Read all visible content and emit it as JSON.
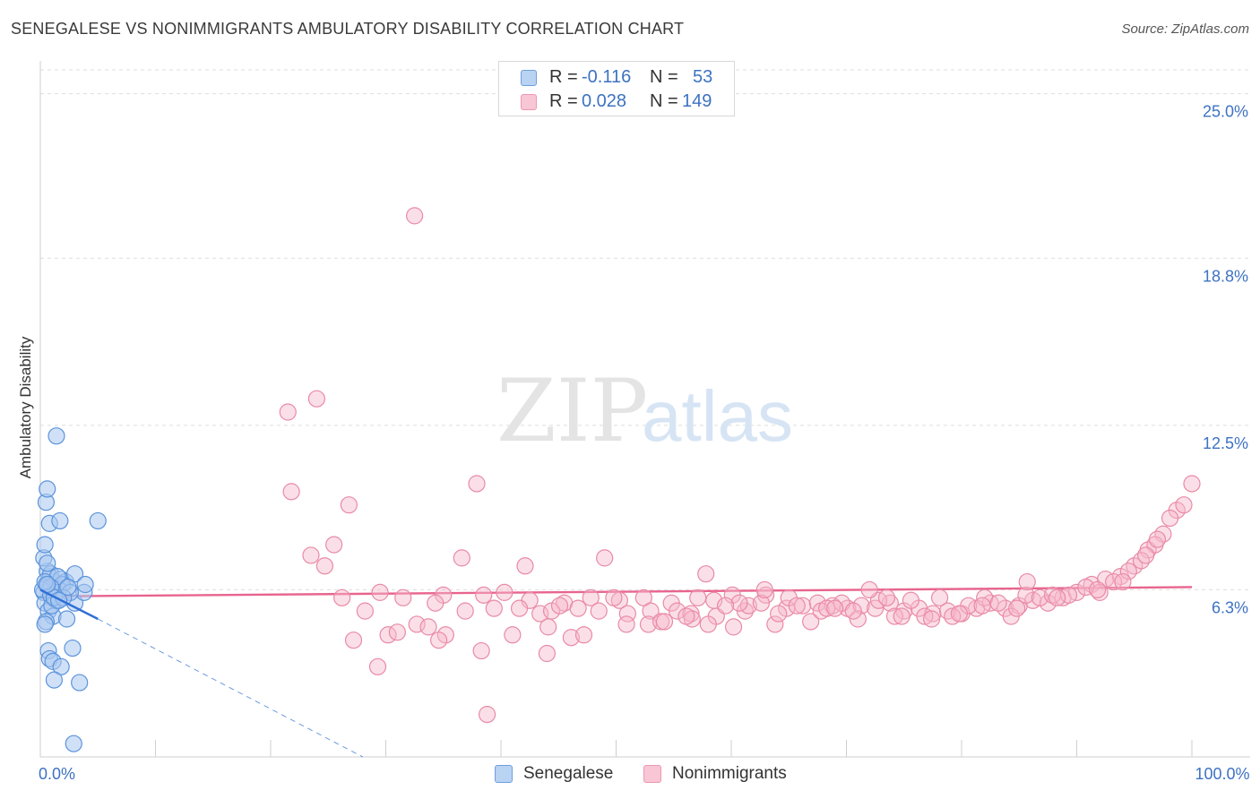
{
  "header": {
    "title": "SENEGALESE VS NONIMMIGRANTS AMBULATORY DISABILITY CORRELATION CHART",
    "source": "Source: ZipAtlas.com"
  },
  "watermark": {
    "zip": "ZIP",
    "atlas": "atlas"
  },
  "legend_top": {
    "rows": [
      {
        "r_label": "R =",
        "r_value": "-0.116",
        "n_label": "N =",
        "n_value": "53"
      },
      {
        "r_label": "R =",
        "r_value": "0.028",
        "n_label": "N =",
        "n_value": "149"
      }
    ]
  },
  "legend_bottom": {
    "items": [
      "Senegalese",
      "Nonimmigrants"
    ]
  },
  "colors": {
    "senegalese_fill": "#a9c8f0",
    "senegalese_stroke": "#5b93db",
    "senegalese_line": "#2f6fd6",
    "nonimm_fill": "#f7b9cb",
    "nonimm_stroke": "#e98aa6",
    "nonimm_line": "#e8648e",
    "axis_label": "#3d72c2",
    "grid": "#dddddd"
  },
  "chart_data": {
    "type": "scatter",
    "title": "SENEGALESE VS NONIMMIGRANTS AMBULATORY DISABILITY CORRELATION CHART",
    "xlabel": "",
    "ylabel": "Ambulatory Disability",
    "xlim": [
      0,
      100
    ],
    "ylim": [
      0,
      25.9
    ],
    "x_tick_labels": [
      "0.0%",
      "100.0%"
    ],
    "y_ticks": [
      6.3,
      12.5,
      18.8,
      25.0
    ],
    "y_tick_labels": [
      "6.3%",
      "12.5%",
      "18.8%",
      "25.0%"
    ],
    "grid": "horizontal dashed",
    "legend_position": "top-center",
    "series": [
      {
        "name": "Senegalese",
        "R": -0.116,
        "N": 53,
        "trend": {
          "x": [
            0,
            5
          ],
          "y": [
            6.3,
            5.2
          ]
        },
        "trend_extension": {
          "x": [
            5,
            28
          ],
          "y": [
            5.2,
            0
          ]
        },
        "points": [
          [
            0.3,
            6.2,
            9
          ],
          [
            0.5,
            6.5,
            9
          ],
          [
            0.8,
            6.8,
            9
          ],
          [
            1.0,
            6.0,
            9
          ],
          [
            0.4,
            5.8,
            9
          ],
          [
            1.2,
            6.6,
            9
          ],
          [
            1.5,
            6.4,
            9
          ],
          [
            0.6,
            7.0,
            9
          ],
          [
            0.9,
            6.9,
            9
          ],
          [
            1.3,
            6.1,
            9
          ],
          [
            1.8,
            6.7,
            9
          ],
          [
            0.2,
            6.3,
            9
          ],
          [
            0.7,
            5.5,
            9
          ],
          [
            1.1,
            5.3,
            9
          ],
          [
            1.4,
            5.9,
            9
          ],
          [
            0.5,
            5.1,
            9
          ],
          [
            2.2,
            6.6,
            9
          ],
          [
            1.6,
            6.3,
            9
          ],
          [
            1.9,
            6.5,
            9
          ],
          [
            0.3,
            7.5,
            9
          ],
          [
            0.6,
            7.3,
            9
          ],
          [
            0.4,
            8.0,
            9
          ],
          [
            0.8,
            8.8,
            9
          ],
          [
            0.5,
            9.6,
            9
          ],
          [
            0.6,
            10.1,
            9
          ],
          [
            1.4,
            12.1,
            9
          ],
          [
            1.7,
            8.9,
            9
          ],
          [
            5.0,
            8.9,
            9
          ],
          [
            2.3,
            5.2,
            9
          ],
          [
            3.0,
            6.9,
            9
          ],
          [
            3.0,
            5.8,
            9
          ],
          [
            3.8,
            6.2,
            9
          ],
          [
            3.9,
            6.5,
            9
          ],
          [
            0.9,
            6.1,
            9
          ],
          [
            2.6,
            6.2,
            9
          ],
          [
            0.7,
            4.0,
            9
          ],
          [
            0.8,
            3.7,
            9
          ],
          [
            1.1,
            3.6,
            9
          ],
          [
            1.8,
            3.4,
            9
          ],
          [
            2.8,
            4.1,
            9
          ],
          [
            1.2,
            2.9,
            9
          ],
          [
            3.4,
            2.8,
            9
          ],
          [
            2.9,
            0.5,
            9
          ],
          [
            0.4,
            5.0,
            9
          ],
          [
            1.0,
            5.7,
            9
          ],
          [
            1.5,
            6.8,
            9
          ],
          [
            0.9,
            6.4,
            9
          ],
          [
            0.4,
            6.6,
            9
          ],
          [
            1.2,
            6.0,
            9
          ],
          [
            2.0,
            6.0,
            9
          ],
          [
            0.6,
            6.5,
            9
          ],
          [
            1.6,
            5.9,
            9
          ],
          [
            2.4,
            6.4,
            9
          ]
        ]
      },
      {
        "name": "Nonimmigrants",
        "R": 0.028,
        "N": 149,
        "trend": {
          "x": [
            0,
            100
          ],
          "y": [
            6.05,
            6.4
          ]
        },
        "points": [
          [
            32.5,
            20.4,
            9
          ],
          [
            21.5,
            13.0,
            9
          ],
          [
            24.0,
            13.5,
            9
          ],
          [
            21.8,
            10.0,
            9
          ],
          [
            26.8,
            9.5,
            9
          ],
          [
            37.9,
            10.3,
            9
          ],
          [
            25.5,
            8.0,
            9
          ],
          [
            23.5,
            7.6,
            9
          ],
          [
            24.7,
            7.2,
            9
          ],
          [
            36.6,
            7.5,
            9
          ],
          [
            42.1,
            7.2,
            9
          ],
          [
            49.0,
            7.5,
            9
          ],
          [
            26.2,
            6.0,
            9
          ],
          [
            29.5,
            6.2,
            9
          ],
          [
            31.5,
            6.0,
            9
          ],
          [
            35.0,
            6.1,
            9
          ],
          [
            38.5,
            6.1,
            9
          ],
          [
            40.3,
            6.2,
            9
          ],
          [
            42.5,
            5.9,
            9
          ],
          [
            45.5,
            5.8,
            9
          ],
          [
            47.8,
            6.0,
            9
          ],
          [
            50.3,
            5.9,
            9
          ],
          [
            52.4,
            6.0,
            9
          ],
          [
            54.8,
            5.8,
            9
          ],
          [
            57.1,
            6.0,
            9
          ],
          [
            60.1,
            6.1,
            9
          ],
          [
            63.0,
            6.1,
            9
          ],
          [
            28.2,
            5.5,
            9
          ],
          [
            34.3,
            5.8,
            9
          ],
          [
            36.9,
            5.5,
            9
          ],
          [
            39.4,
            5.6,
            9
          ],
          [
            41.6,
            5.6,
            9
          ],
          [
            43.4,
            5.4,
            9
          ],
          [
            44.4,
            5.5,
            9
          ],
          [
            46.7,
            5.6,
            9
          ],
          [
            48.5,
            5.5,
            9
          ],
          [
            51.0,
            5.4,
            9
          ],
          [
            53.0,
            5.5,
            9
          ],
          [
            55.3,
            5.5,
            9
          ],
          [
            56.5,
            5.4,
            9
          ],
          [
            58.7,
            5.3,
            9
          ],
          [
            61.2,
            5.5,
            9
          ],
          [
            64.8,
            5.6,
            9
          ],
          [
            30.2,
            4.6,
            9
          ],
          [
            31.0,
            4.7,
            9
          ],
          [
            32.7,
            5.0,
            9
          ],
          [
            33.7,
            4.9,
            9
          ],
          [
            35.2,
            4.6,
            9
          ],
          [
            34.6,
            4.4,
            9
          ],
          [
            38.3,
            4.0,
            9
          ],
          [
            41.0,
            4.6,
            9
          ],
          [
            44.1,
            4.9,
            9
          ],
          [
            46.1,
            4.5,
            9
          ],
          [
            47.2,
            4.6,
            9
          ],
          [
            50.9,
            5.0,
            9
          ],
          [
            52.8,
            5.0,
            9
          ],
          [
            53.9,
            5.1,
            9
          ],
          [
            56.6,
            5.2,
            9
          ],
          [
            58.0,
            5.0,
            9
          ],
          [
            60.2,
            4.9,
            9
          ],
          [
            27.2,
            4.4,
            9
          ],
          [
            29.3,
            3.4,
            9
          ],
          [
            44.0,
            3.9,
            9
          ],
          [
            38.8,
            1.6,
            9
          ],
          [
            65.0,
            6.0,
            9
          ],
          [
            66.2,
            5.7,
            9
          ],
          [
            67.5,
            5.8,
            9
          ],
          [
            68.8,
            5.7,
            9
          ],
          [
            70.1,
            5.6,
            9
          ],
          [
            71.3,
            5.7,
            9
          ],
          [
            72.5,
            5.6,
            9
          ],
          [
            73.8,
            5.8,
            9
          ],
          [
            75.0,
            5.5,
            9
          ],
          [
            76.3,
            5.6,
            9
          ],
          [
            77.5,
            5.4,
            9
          ],
          [
            78.8,
            5.5,
            9
          ],
          [
            80.0,
            5.4,
            9
          ],
          [
            81.3,
            5.6,
            9
          ],
          [
            82.5,
            5.8,
            9
          ],
          [
            83.8,
            5.6,
            9
          ],
          [
            85.0,
            5.7,
            9
          ],
          [
            86.2,
            5.9,
            9
          ],
          [
            87.5,
            5.8,
            9
          ],
          [
            88.8,
            6.0,
            9
          ],
          [
            90.0,
            6.2,
            9
          ],
          [
            91.3,
            6.5,
            9
          ],
          [
            92.5,
            6.7,
            9
          ],
          [
            93.8,
            6.8,
            9
          ],
          [
            95.0,
            7.2,
            9
          ],
          [
            96.2,
            7.8,
            9
          ],
          [
            97.5,
            8.4,
            9
          ],
          [
            98.7,
            9.3,
            9
          ],
          [
            100.0,
            10.3,
            9
          ],
          [
            71.0,
            5.2,
            9
          ],
          [
            74.2,
            5.3,
            9
          ],
          [
            76.8,
            5.3,
            9
          ],
          [
            79.2,
            5.3,
            9
          ],
          [
            84.3,
            5.3,
            9
          ],
          [
            66.9,
            5.1,
            9
          ],
          [
            77.4,
            5.2,
            9
          ],
          [
            63.8,
            5.0,
            9
          ],
          [
            61.5,
            5.7,
            9
          ],
          [
            62.6,
            5.8,
            9
          ],
          [
            67.8,
            5.5,
            9
          ],
          [
            69.6,
            5.8,
            9
          ],
          [
            72.8,
            5.9,
            9
          ],
          [
            75.6,
            5.9,
            9
          ],
          [
            78.1,
            6.0,
            9
          ],
          [
            80.6,
            5.7,
            9
          ],
          [
            82.0,
            6.0,
            9
          ],
          [
            83.2,
            5.8,
            9
          ],
          [
            85.6,
            6.1,
            9
          ],
          [
            86.8,
            6.0,
            9
          ],
          [
            87.9,
            6.1,
            9
          ],
          [
            89.3,
            6.1,
            9
          ],
          [
            90.8,
            6.4,
            9
          ],
          [
            92.0,
            6.2,
            9
          ],
          [
            93.2,
            6.6,
            9
          ],
          [
            94.5,
            7.0,
            9
          ],
          [
            95.6,
            7.4,
            9
          ],
          [
            96.8,
            8.0,
            9
          ],
          [
            98.1,
            9.0,
            9
          ],
          [
            99.3,
            9.5,
            9
          ],
          [
            85.7,
            6.6,
            9
          ],
          [
            72.0,
            6.3,
            9
          ],
          [
            62.9,
            6.3,
            9
          ],
          [
            57.8,
            6.9,
            9
          ],
          [
            60.7,
            5.8,
            9
          ],
          [
            64.1,
            5.4,
            9
          ],
          [
            68.3,
            5.6,
            9
          ],
          [
            74.8,
            5.3,
            9
          ],
          [
            79.8,
            5.4,
            9
          ],
          [
            58.5,
            5.9,
            9
          ],
          [
            59.5,
            5.7,
            9
          ],
          [
            45.1,
            5.7,
            9
          ],
          [
            49.8,
            6.0,
            9
          ],
          [
            54.2,
            5.1,
            9
          ],
          [
            56.1,
            5.3,
            9
          ],
          [
            73.5,
            6.0,
            9
          ],
          [
            65.7,
            5.7,
            9
          ],
          [
            69.0,
            5.6,
            9
          ],
          [
            70.6,
            5.5,
            9
          ],
          [
            81.8,
            5.7,
            9
          ],
          [
            88.3,
            6.0,
            9
          ],
          [
            91.8,
            6.3,
            9
          ],
          [
            94.0,
            6.6,
            9
          ],
          [
            96.0,
            7.6,
            9
          ],
          [
            97.0,
            8.2,
            9
          ],
          [
            84.8,
            5.6,
            9
          ]
        ]
      }
    ]
  }
}
